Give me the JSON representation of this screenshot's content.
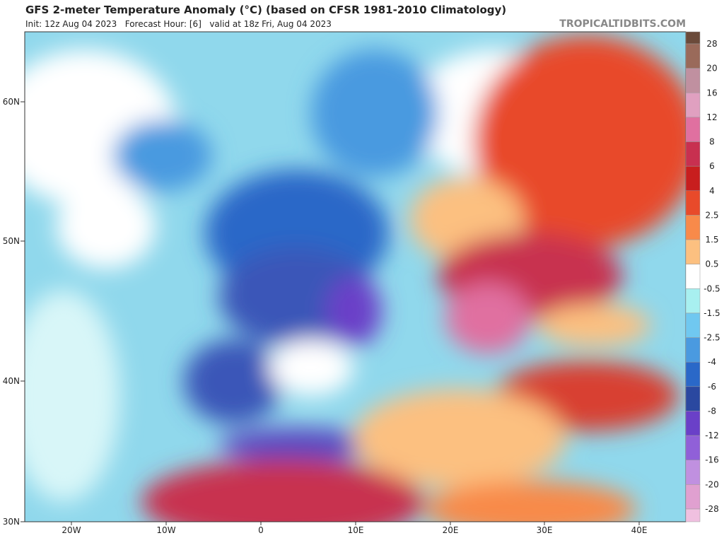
{
  "header": {
    "title": "GFS 2-meter Temperature Anomaly (°C) (based on CFSR 1981-2010 Climatology)",
    "subtitle": "Init: 12z Aug 04 2023   Forecast Hour: [6]   valid at 18z Fri, Aug 04 2023",
    "credit": "TROPICALTIDBITS.COM"
  },
  "map": {
    "lat_labels": [
      "60N",
      "50N",
      "40N",
      "30N"
    ],
    "lon_labels": [
      "20W",
      "10W",
      "0",
      "10E",
      "20E",
      "30E",
      "40E"
    ]
  },
  "colorbar": {
    "labels": [
      "28",
      "20",
      "16",
      "12",
      "8",
      "6",
      "4",
      "2.5",
      "1.5",
      "0.5",
      "-0.5",
      "-1.5",
      "-2.5",
      "-4",
      "-6",
      "-8",
      "-12",
      "-16",
      "-20",
      "-28"
    ]
  }
}
